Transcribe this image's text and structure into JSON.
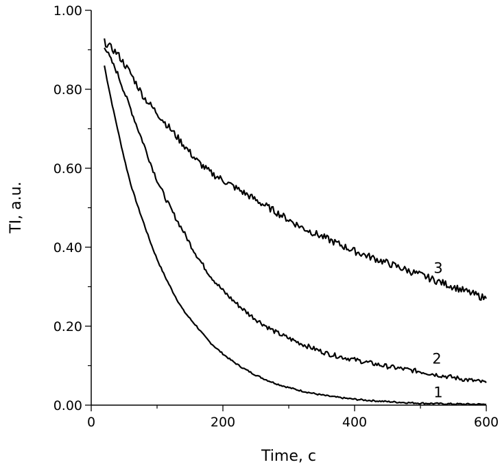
{
  "chart_data": {
    "type": "line",
    "title": "",
    "xlabel": "Time, c",
    "ylabel": "TI, a.u.",
    "xlim": [
      0,
      600
    ],
    "ylim": [
      0,
      1
    ],
    "x_ticks": [
      0,
      200,
      400,
      600
    ],
    "x_tick_labels": [
      "0",
      "200",
      "400",
      "600"
    ],
    "x_minor_ticks": [
      100,
      300,
      500
    ],
    "y_ticks": [
      0,
      0.2,
      0.4,
      0.6,
      0.8,
      1.0
    ],
    "y_tick_labels": [
      "0.00",
      "0.20",
      "0.40",
      "0.60",
      "0.80",
      "1.00"
    ],
    "y_minor_ticks": [
      0.1,
      0.3,
      0.5,
      0.7,
      0.9
    ],
    "grid": false,
    "line_color": "#000000",
    "series": [
      {
        "name": "1",
        "x": [
          20,
          40,
          60,
          80,
          100,
          120,
          140,
          160,
          180,
          200,
          240,
          280,
          320,
          360,
          400,
          450,
          500,
          550,
          600
        ],
        "y": [
          0.86,
          0.7,
          0.56,
          0.46,
          0.37,
          0.3,
          0.24,
          0.2,
          0.16,
          0.13,
          0.085,
          0.055,
          0.036,
          0.023,
          0.015,
          0.009,
          0.005,
          0.003,
          0.002
        ],
        "label_at": [
          520,
          0.02
        ]
      },
      {
        "name": "2",
        "x": [
          20,
          40,
          60,
          80,
          100,
          120,
          140,
          160,
          180,
          200,
          240,
          280,
          320,
          360,
          400,
          450,
          500,
          550,
          600
        ],
        "y": [
          0.91,
          0.84,
          0.75,
          0.66,
          0.57,
          0.5,
          0.44,
          0.38,
          0.33,
          0.29,
          0.23,
          0.185,
          0.155,
          0.13,
          0.115,
          0.098,
          0.085,
          0.07,
          0.057
        ],
        "label_at": [
          518,
          0.105
        ]
      },
      {
        "name": "3",
        "x": [
          20,
          40,
          60,
          80,
          100,
          120,
          140,
          160,
          180,
          200,
          240,
          280,
          320,
          360,
          400,
          450,
          500,
          550,
          600
        ],
        "y": [
          0.92,
          0.89,
          0.84,
          0.78,
          0.74,
          0.7,
          0.66,
          0.62,
          0.59,
          0.57,
          0.53,
          0.49,
          0.45,
          0.42,
          0.39,
          0.36,
          0.33,
          0.3,
          0.27
        ],
        "label_at": [
          520,
          0.335
        ]
      }
    ]
  }
}
